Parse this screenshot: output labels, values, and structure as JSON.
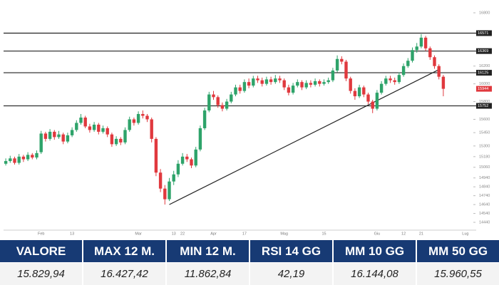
{
  "chart_data": {
    "type": "candlestick",
    "categories": [
      null,
      null,
      null,
      null,
      null,
      null,
      null,
      null,
      "Feb",
      null,
      null,
      null,
      null,
      null,
      null,
      "13",
      null,
      null,
      null,
      null,
      null,
      null,
      null,
      null,
      null,
      null,
      null,
      null,
      null,
      null,
      "Mar",
      null,
      null,
      null,
      null,
      null,
      null,
      null,
      "13",
      null,
      "22",
      null,
      null,
      null,
      null,
      null,
      null,
      "Apr",
      null,
      null,
      null,
      null,
      null,
      null,
      "17",
      null,
      null,
      null,
      null,
      null,
      null,
      null,
      null,
      "Mag",
      null,
      null,
      null,
      null,
      null,
      null,
      null,
      null,
      "15",
      null,
      null,
      null,
      null,
      null,
      null,
      null,
      null,
      null,
      null,
      null,
      "Giu",
      null,
      null,
      null,
      null,
      null,
      "12",
      null,
      null,
      null,
      "21",
      null,
      null,
      null,
      null,
      null,
      null,
      null,
      null,
      null,
      "Lug",
      null
    ],
    "open": [
      15100,
      15130,
      15160,
      15110,
      15180,
      15150,
      15200,
      15170,
      15230,
      15440,
      15380,
      15460,
      15400,
      15430,
      15350,
      15420,
      15480,
      15560,
      15620,
      15520,
      15480,
      15540,
      15460,
      15500,
      15430,
      15320,
      15380,
      15340,
      15480,
      15600,
      15560,
      15660,
      15640,
      15600,
      15380,
      15000,
      14820,
      14700,
      14900,
      14980,
      15100,
      15180,
      15150,
      15080,
      15260,
      15500,
      15700,
      15880,
      15850,
      15760,
      15720,
      15800,
      15880,
      15960,
      15920,
      16020,
      15980,
      16060,
      16040,
      16000,
      16050,
      16020,
      16060,
      16040,
      15960,
      15900,
      15980,
      16020,
      15960,
      16010,
      15990,
      16030,
      16000,
      16020,
      16040,
      16150,
      16280,
      16250,
      16060,
      15920,
      15860,
      15960,
      15880,
      15800,
      15720,
      15900,
      16000,
      16060,
      16040,
      16020,
      16100,
      16200,
      16260,
      16380,
      16420,
      16520,
      16400,
      16300,
      16200,
      16080,
      null,
      null,
      null,
      null,
      null,
      null
    ],
    "high": [
      15160,
      15190,
      15180,
      15210,
      15200,
      15230,
      15220,
      15250,
      15470,
      15460,
      15490,
      15480,
      15470,
      15450,
      15450,
      15510,
      15590,
      15660,
      15640,
      15550,
      15570,
      15560,
      15530,
      15520,
      15450,
      15410,
      15400,
      15510,
      15630,
      15620,
      15690,
      15700,
      15660,
      15620,
      15400,
      15040,
      14860,
      14940,
      15020,
      15140,
      15220,
      15210,
      15170,
      15290,
      15530,
      15730,
      15910,
      15920,
      15870,
      15790,
      15830,
      15910,
      15990,
      15990,
      16050,
      16060,
      16090,
      16090,
      16070,
      16080,
      16080,
      16100,
      16090,
      16060,
      15990,
      16010,
      16050,
      16040,
      16040,
      16040,
      16060,
      16050,
      16050,
      16070,
      16180,
      16320,
      16310,
      16270,
      16080,
      15950,
      15990,
      15980,
      15900,
      15820,
      15930,
      16030,
      16090,
      16090,
      16070,
      16130,
      16230,
      16290,
      16410,
      16460,
      16560,
      16540,
      16420,
      16320,
      16220,
      16100,
      null,
      null,
      null,
      null,
      null,
      null
    ],
    "low": [
      15080,
      15110,
      15090,
      15090,
      15120,
      15130,
      15150,
      15150,
      15210,
      15350,
      15360,
      15370,
      15380,
      15320,
      15330,
      15400,
      15460,
      15540,
      15500,
      15450,
      15460,
      15430,
      15440,
      15400,
      15290,
      15300,
      15310,
      15320,
      15460,
      15530,
      15540,
      15610,
      15570,
      15340,
      14960,
      14780,
      14640,
      14680,
      14860,
      14950,
      15080,
      15120,
      15050,
      15060,
      15240,
      15480,
      15680,
      15820,
      15730,
      15690,
      15700,
      15780,
      15860,
      15890,
      15900,
      15950,
      15960,
      16010,
      15970,
      15980,
      15990,
      16000,
      16010,
      15930,
      15870,
      15880,
      15960,
      15930,
      15940,
      15960,
      15970,
      15970,
      15980,
      16000,
      16020,
      16130,
      16220,
      16030,
      15890,
      15820,
      15840,
      15850,
      15770,
      15670,
      15700,
      15880,
      15980,
      16010,
      15990,
      16000,
      16080,
      16180,
      16240,
      16350,
      16400,
      16370,
      16270,
      16170,
      16050,
      15860,
      null,
      null,
      null,
      null,
      null,
      null
    ],
    "close": [
      15130,
      15160,
      15110,
      15180,
      15150,
      15200,
      15170,
      15220,
      15440,
      15380,
      15460,
      15400,
      15430,
      15350,
      15420,
      15480,
      15560,
      15620,
      15520,
      15480,
      15540,
      15460,
      15500,
      15430,
      15320,
      15380,
      15340,
      15480,
      15600,
      15560,
      15660,
      15640,
      15600,
      15380,
      15000,
      14820,
      14700,
      14900,
      14980,
      15100,
      15180,
      15150,
      15080,
      15260,
      15500,
      15700,
      15880,
      15850,
      15760,
      15720,
      15800,
      15880,
      15960,
      15920,
      16020,
      15980,
      16060,
      16040,
      16000,
      16050,
      16020,
      16060,
      16040,
      15960,
      15900,
      15980,
      16020,
      15960,
      16010,
      15990,
      16030,
      16000,
      16020,
      16040,
      16150,
      16280,
      16250,
      16060,
      15920,
      15860,
      15960,
      15880,
      15800,
      15720,
      15900,
      16000,
      16060,
      16040,
      16020,
      16100,
      16200,
      16260,
      16380,
      16420,
      16520,
      16400,
      16300,
      16200,
      16080,
      15944,
      null,
      null,
      null,
      null,
      null,
      null
    ],
    "up_color": "#2ea36a",
    "down_color": "#e0393e",
    "levels": [
      16571,
      16369,
      16125,
      15752
    ],
    "trendline": {
      "x": [
        37,
        98
      ],
      "y": [
        14640,
        16160
      ]
    },
    "ylim": [
      14360,
      16880
    ],
    "yticks": [
      16800,
      16200,
      16000,
      15800,
      15600,
      15450,
      15300,
      15180,
      15060,
      14940,
      14840,
      14740,
      14640,
      14540,
      14440
    ]
  },
  "table": {
    "headers": [
      "VALORE",
      "MAX 12 M.",
      "MIN 12 M.",
      "RSI 14 GG",
      "MM 10 GG",
      "MM 50 GG"
    ],
    "values": [
      "15.829,94",
      "16.427,42",
      "11.862,84",
      "42,19",
      "16.144,08",
      "15.960,55"
    ]
  }
}
